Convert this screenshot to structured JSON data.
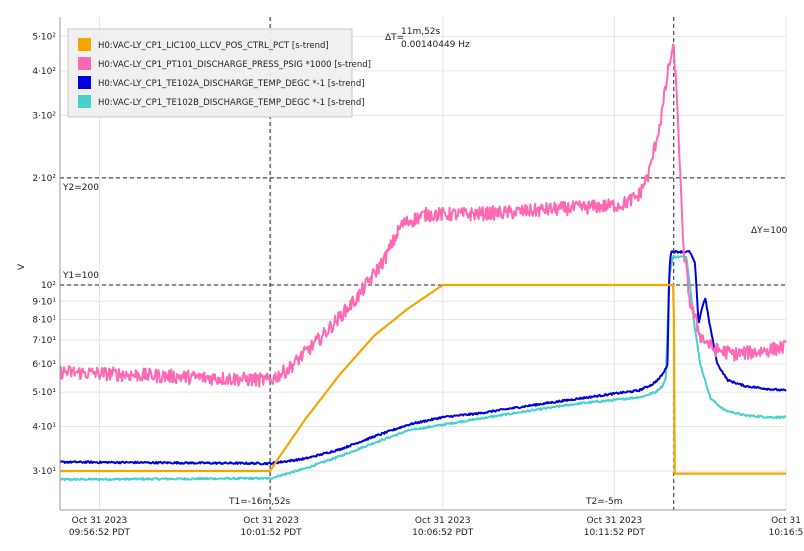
{
  "chart_data": {
    "type": "line",
    "ylabel": "V",
    "y_scale": "log",
    "ylim": [
      25,
      520
    ],
    "x_ticks": [
      {
        "t": 0,
        "line1": "Oct 31 2023",
        "line2": "09:56:52 PDT"
      },
      {
        "t": 5,
        "line1": "Oct 31 2023",
        "line2": "10:01:52 PDT"
      },
      {
        "t": 10,
        "line1": "Oct 31 2023",
        "line2": "10:06:52 PDT"
      },
      {
        "t": 15,
        "line1": "Oct 31 2023",
        "line2": "10:11:52 PDT"
      },
      {
        "t": 20,
        "line1": "Oct 31",
        "line2": "10:16:5"
      }
    ],
    "x_range_minutes": [
      -1.15,
      20.0
    ],
    "y_ticks": [
      {
        "v": 30,
        "label": "3·10¹"
      },
      {
        "v": 40,
        "label": "4·10¹"
      },
      {
        "v": 50,
        "label": "5·10¹"
      },
      {
        "v": 60,
        "label": "6·10¹"
      },
      {
        "v": 70,
        "label": "7·10¹"
      },
      {
        "v": 80,
        "label": "8·10¹"
      },
      {
        "v": 90,
        "label": "9·10¹"
      },
      {
        "v": 100,
        "label": "10²"
      },
      {
        "v": 200,
        "label": "2·10²"
      },
      {
        "v": 300,
        "label": "3·10²"
      },
      {
        "v": 400,
        "label": "4·10²"
      },
      {
        "v": 500,
        "label": "5·10²"
      }
    ],
    "grid": true,
    "legend_position": "top-left",
    "series": [
      {
        "name": "H0:VAC-LY_CP1_LIC100_LLCV_POS_CTRL_PCT [s-trend]",
        "color": "#f5a500",
        "noise": 0,
        "points": [
          [
            -1.15,
            30
          ],
          [
            4.97,
            30
          ],
          [
            5.3,
            33.5
          ],
          [
            6,
            42
          ],
          [
            7,
            56
          ],
          [
            8,
            72
          ],
          [
            9,
            86
          ],
          [
            10,
            100
          ],
          [
            16.73,
            100
          ],
          [
            16.75,
            29.5
          ],
          [
            20,
            29.5
          ]
        ]
      },
      {
        "name": "H0:VAC-LY_CP1_PT101_DISCHARGE_PRESS_PSIG *1000 [s-trend]",
        "color": "#ff69b4",
        "noise": 0.045,
        "points": [
          [
            -1.15,
            57
          ],
          [
            4.97,
            54
          ],
          [
            5.5,
            58
          ],
          [
            6.5,
            72
          ],
          [
            7.5,
            92
          ],
          [
            8.3,
            118
          ],
          [
            8.8,
            148
          ],
          [
            9.5,
            158
          ],
          [
            10.5,
            158
          ],
          [
            12,
            160
          ],
          [
            13,
            163
          ],
          [
            14,
            165
          ],
          [
            15.2,
            168
          ],
          [
            15.7,
            178
          ],
          [
            16.0,
            205
          ],
          [
            16.35,
            290
          ],
          [
            16.6,
            420
          ],
          [
            16.73,
            462
          ],
          [
            16.85,
            300
          ],
          [
            17.0,
            130
          ],
          [
            17.2,
            90
          ],
          [
            17.5,
            72
          ],
          [
            17.9,
            66
          ],
          [
            18.5,
            64
          ],
          [
            19.2,
            65
          ],
          [
            20,
            67
          ]
        ]
      },
      {
        "name": "H0:VAC-LY_CP1_TE102A_DISCHARGE_TEMP_DEGC *-1 [s-trend]",
        "color": "#0000dd",
        "noise": 0.006,
        "points": [
          [
            -1.15,
            31.8
          ],
          [
            4.97,
            31.5
          ],
          [
            6,
            32.5
          ],
          [
            7,
            34.5
          ],
          [
            8,
            37.5
          ],
          [
            9,
            40.5
          ],
          [
            10,
            42.5
          ],
          [
            11,
            43.5
          ],
          [
            12,
            45
          ],
          [
            13,
            46.5
          ],
          [
            14,
            48
          ],
          [
            15,
            49.5
          ],
          [
            15.7,
            50.5
          ],
          [
            16.1,
            52.5
          ],
          [
            16.3,
            54.5
          ],
          [
            16.45,
            57
          ],
          [
            16.55,
            60
          ],
          [
            16.6,
            110
          ],
          [
            16.65,
            124
          ],
          [
            17.2,
            124
          ],
          [
            17.35,
            115
          ],
          [
            17.45,
            78
          ],
          [
            17.55,
            86
          ],
          [
            17.65,
            92
          ],
          [
            17.75,
            80
          ],
          [
            18,
            60
          ],
          [
            18.3,
            54
          ],
          [
            18.8,
            52
          ],
          [
            19.5,
            51
          ],
          [
            20,
            50.5
          ]
        ]
      },
      {
        "name": "H0:VAC-LY_CP1_TE102B_DISCHARGE_TEMP_DEGC *-1 [s-trend]",
        "color": "#48d1cc",
        "noise": 0.006,
        "points": [
          [
            -1.15,
            28.4
          ],
          [
            4.97,
            28.6
          ],
          [
            6,
            30.5
          ],
          [
            7,
            33
          ],
          [
            8,
            36
          ],
          [
            9,
            39
          ],
          [
            10,
            40.5
          ],
          [
            11,
            42
          ],
          [
            12,
            43.5
          ],
          [
            13,
            45
          ],
          [
            14,
            46.5
          ],
          [
            15,
            47.5
          ],
          [
            15.8,
            48.5
          ],
          [
            16.2,
            50
          ],
          [
            16.4,
            52
          ],
          [
            16.5,
            55
          ],
          [
            16.6,
            105
          ],
          [
            16.7,
            120
          ],
          [
            17.1,
            120
          ],
          [
            17.2,
            100
          ],
          [
            17.35,
            75
          ],
          [
            17.5,
            60
          ],
          [
            17.8,
            48
          ],
          [
            18.2,
            44.5
          ],
          [
            18.8,
            43
          ],
          [
            19.5,
            42.5
          ],
          [
            20,
            42.5
          ]
        ]
      }
    ],
    "cursors": {
      "t1": {
        "t": 4.97,
        "label": "T1=-16m,52s"
      },
      "t2": {
        "t": 16.73,
        "label": "T2=-5m"
      },
      "y1": {
        "v": 100,
        "label": "Y1=100"
      },
      "y2": {
        "v": 200,
        "label": "Y2=200"
      },
      "delta_t_symbol": "ΔT=",
      "delta_t": "11m,52s",
      "delta_freq": "0.00140449 Hz",
      "delta_y": "ΔY=100"
    }
  }
}
